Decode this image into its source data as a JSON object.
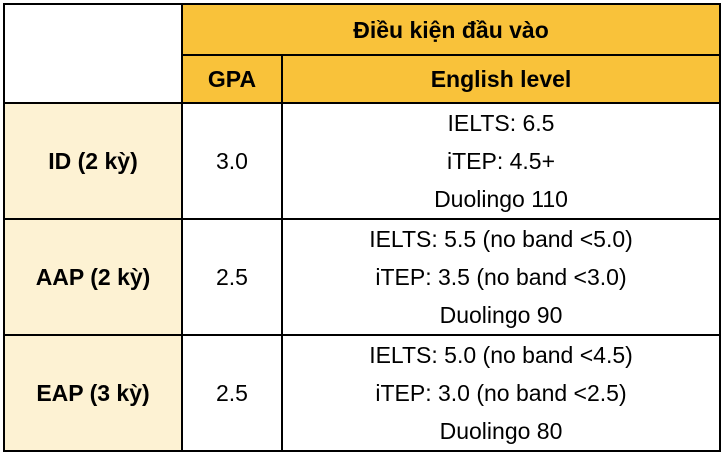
{
  "table": {
    "header": {
      "group_label": "Điều kiện đầu vào",
      "gpa_label": "GPA",
      "english_label": "English level"
    },
    "rows": [
      {
        "program": "ID (2 kỳ)",
        "gpa": "3.0",
        "english": [
          "IELTS: 6.5",
          "iTEP: 4.5+",
          "Duolingo 110"
        ]
      },
      {
        "program": "AAP (2 kỳ)",
        "gpa": "2.5",
        "english": [
          "IELTS: 5.5 (no band <5.0)",
          "iTEP: 3.5 (no band <3.0)",
          "Duolingo 90"
        ]
      },
      {
        "program": "EAP (3 kỳ)",
        "gpa": "2.5",
        "english": [
          "IELTS: 5.0 (no band <4.5)",
          "iTEP: 3.0 (no band <2.5)",
          "Duolingo 80"
        ]
      }
    ],
    "colors": {
      "header_bg": "#f9c23a",
      "program_bg": "#fdf2d3",
      "border": "#000000"
    }
  }
}
